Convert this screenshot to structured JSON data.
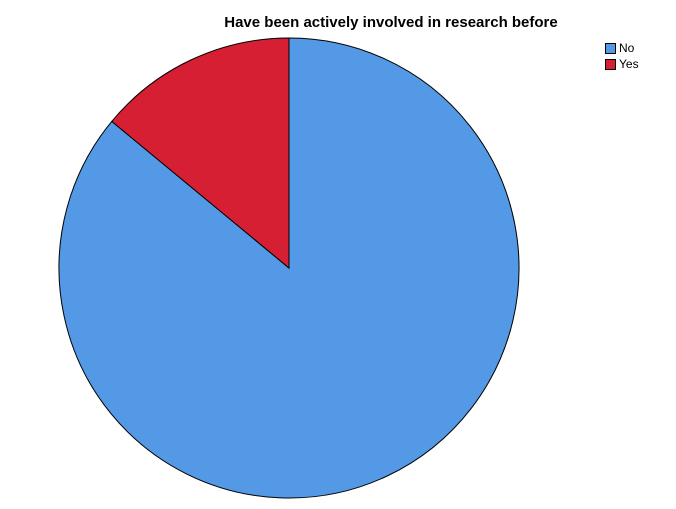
{
  "chart_data": {
    "type": "pie",
    "title": "Have been actively involved in research before",
    "categories": [
      "No",
      "Yes"
    ],
    "values": [
      86,
      14
    ],
    "colors": [
      "#5499e6",
      "#d61f33"
    ],
    "legend_position": "top-right",
    "start_angle_deg": 0,
    "direction": "clockwise"
  }
}
